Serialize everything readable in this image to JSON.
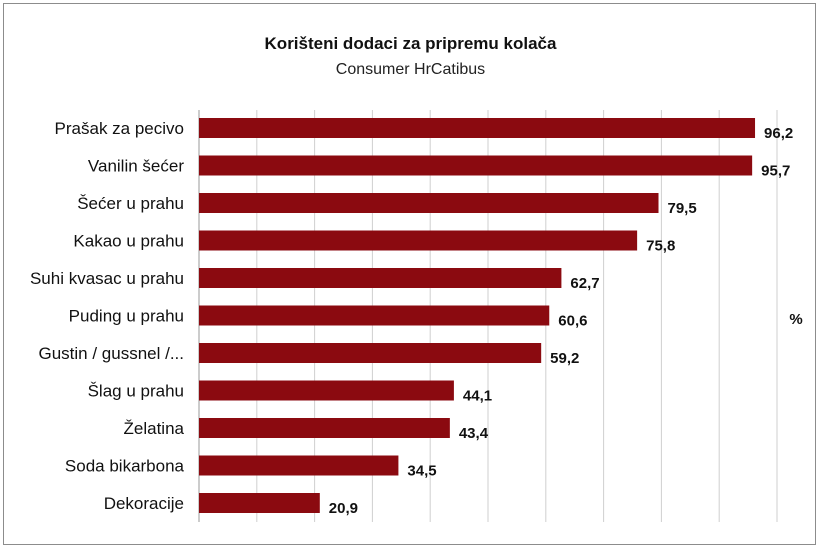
{
  "chart_data": {
    "type": "bar",
    "orientation": "horizontal",
    "title": "Korišteni dodaci za pripremu kolača",
    "subtitle": "Consumer HrCatibus",
    "unit": "%",
    "categories": [
      "Prašak za pecivo",
      "Vanilin šećer",
      "Šećer u prahu",
      "Kakao u prahu",
      "Suhi kvasac u prahu",
      "Puding u prahu",
      "Gustin / gussnel /...",
      "Šlag u prahu",
      "Želatina",
      "Soda bikarbona",
      "Dekoracije"
    ],
    "values": [
      96.2,
      95.7,
      79.5,
      75.8,
      62.7,
      60.6,
      59.2,
      44.1,
      43.4,
      34.5,
      20.9
    ],
    "value_labels": [
      "96,2",
      "95,7",
      "79,5",
      "75,8",
      "62,7",
      "60,6",
      "59,2",
      "44,1",
      "43,4",
      "34,5",
      "20,9"
    ],
    "xlim": [
      0,
      100
    ],
    "grid": true,
    "bar_color": "#8b0a10",
    "grid_color": "#cfcfcf"
  }
}
